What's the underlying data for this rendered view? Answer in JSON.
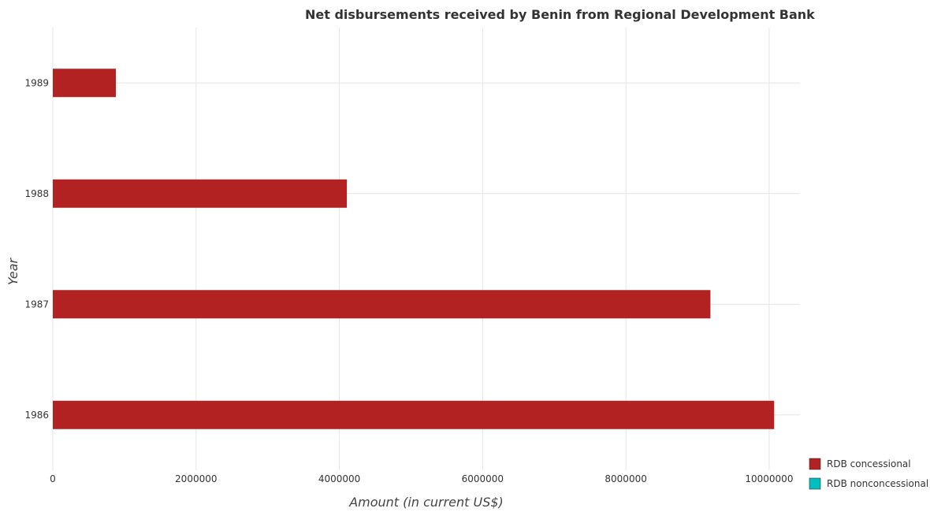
{
  "chart_data": {
    "type": "bar",
    "orientation": "horizontal",
    "title": "Net disbursements received by Benin from Regional Development Bank",
    "xlabel": "Amount (in current US$)",
    "ylabel": "Year",
    "categories": [
      "1986",
      "1987",
      "1988",
      "1989"
    ],
    "series": [
      {
        "name": "RDB concessional",
        "color": "#b22222",
        "values": [
          10070000,
          9180000,
          4105000,
          880000
        ]
      },
      {
        "name": "RDB nonconcessional",
        "color": "#00bfbf",
        "values": [
          0,
          0,
          0,
          0
        ]
      }
    ],
    "xlim": [
      0,
      10430000
    ],
    "xticks": [
      0,
      2000000,
      4000000,
      6000000,
      8000000,
      10000000
    ],
    "xtick_labels": [
      "0",
      "2000000",
      "4000000",
      "6000000",
      "8000000",
      "10000000"
    ],
    "grid": true,
    "legend_position": "bottom-right"
  }
}
